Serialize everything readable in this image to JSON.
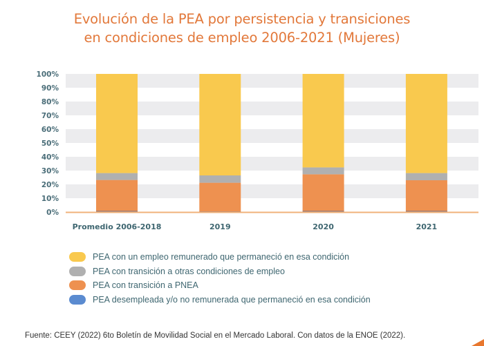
{
  "chart_data": {
    "type": "bar",
    "stacked": true,
    "title_parts": [
      {
        "text": "Evolución de la PEA ",
        "style": "light"
      },
      {
        "text": "por persistencia y transiciones",
        "style": "bold"
      },
      {
        "text": "en condiciones de empleo 2006-2021 (Mujeres)",
        "style": "bold"
      }
    ],
    "title": "Evolución de la PEA por persistencia y transiciones en condiciones de empleo 2006-2021 (Mujeres)",
    "categories": [
      "Promedio 2006-2018",
      "2019",
      "2020",
      "2021"
    ],
    "series": [
      {
        "name": "PEA desempleada y/o no remunerada que permaneció en esa condición",
        "color": "#5b8bd0",
        "bar_color": "#a07e78",
        "values": [
          1.0,
          0.5,
          1.0,
          1.0
        ]
      },
      {
        "name": "PEA con transición a PNEA",
        "color": "#ee9150",
        "values": [
          22.2,
          20.7,
          26.3,
          22.0
        ]
      },
      {
        "name": "PEA con transición a otras condiciones de empleo",
        "color": "#b0b0b0",
        "values": [
          5.0,
          5.3,
          5.0,
          5.2
        ]
      },
      {
        "name": "PEA con un empleo remunerado que permaneció en esa condición",
        "color": "#f9c94e",
        "values": [
          71.8,
          73.5,
          67.7,
          71.8
        ]
      }
    ],
    "legend_order": [
      3,
      2,
      1,
      0
    ],
    "yticks": [
      "0%",
      "10%",
      "20%",
      "30%",
      "40%",
      "50%",
      "60%",
      "70%",
      "80%",
      "90%",
      "100%"
    ],
    "ylim": [
      0,
      100
    ],
    "xlabel": "",
    "ylabel": "",
    "grid": "alternating horizontal bands",
    "legend_position": "bottom-left"
  },
  "source": "Fuente: CEEY (2022) 6to Boletín de Movilidad Social en el Mercado Laboral. Con datos de la ENOE (2022).",
  "colors": {
    "title": "#e2783a",
    "axis_text": "#4a6d78",
    "band": "#ececee",
    "baseline": "#f0b27a",
    "corner_accent": "#e8772e"
  }
}
